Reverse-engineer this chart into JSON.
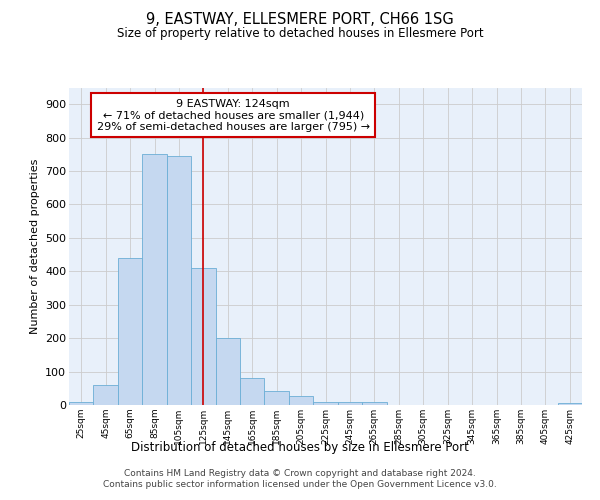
{
  "title": "9, EASTWAY, ELLESMERE PORT, CH66 1SG",
  "subtitle": "Size of property relative to detached houses in Ellesmere Port",
  "xlabel": "Distribution of detached houses by size in Ellesmere Port",
  "ylabel": "Number of detached properties",
  "bar_color": "#C5D8F0",
  "bar_edge_color": "#6BAED6",
  "categories": [
    "25sqm",
    "45sqm",
    "65sqm",
    "85sqm",
    "105sqm",
    "125sqm",
    "145sqm",
    "165sqm",
    "185sqm",
    "205sqm",
    "225sqm",
    "245sqm",
    "265sqm",
    "285sqm",
    "305sqm",
    "325sqm",
    "345sqm",
    "365sqm",
    "385sqm",
    "405sqm",
    "425sqm"
  ],
  "values": [
    10,
    60,
    440,
    750,
    745,
    410,
    200,
    80,
    42,
    28,
    10,
    10,
    10,
    0,
    0,
    0,
    0,
    0,
    0,
    0,
    5
  ],
  "property_line_index": 5,
  "property_line_color": "#CC0000",
  "annotation_line1": "9 EASTWAY: 124sqm",
  "annotation_line2": "← 71% of detached houses are smaller (1,944)",
  "annotation_line3": "29% of semi-detached houses are larger (795) →",
  "annotation_box_color": "#CC0000",
  "ylim": [
    0,
    950
  ],
  "yticks": [
    0,
    100,
    200,
    300,
    400,
    500,
    600,
    700,
    800,
    900
  ],
  "grid_color": "#CCCCCC",
  "background_color": "#E8F0FA",
  "footer_line1": "Contains HM Land Registry data © Crown copyright and database right 2024.",
  "footer_line2": "Contains public sector information licensed under the Open Government Licence v3.0."
}
